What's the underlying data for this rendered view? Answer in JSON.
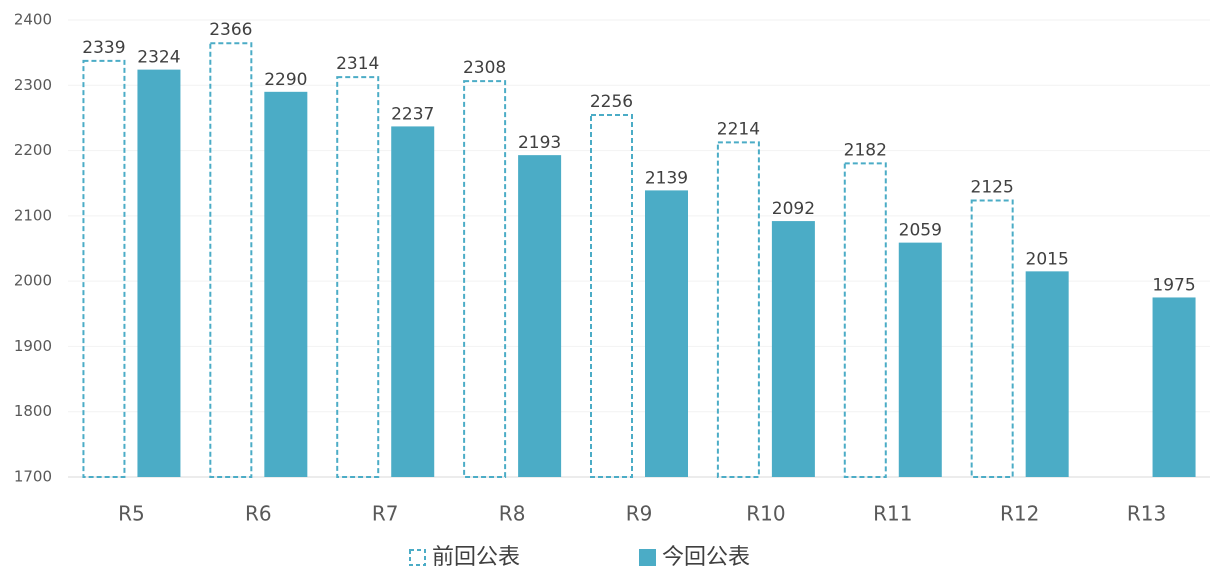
{
  "chart_data": {
    "type": "bar",
    "categories": [
      "R5",
      "R6",
      "R7",
      "R8",
      "R9",
      "R10",
      "R11",
      "R12",
      "R13"
    ],
    "series": [
      {
        "name": "前回公表",
        "color": "#4bacc6",
        "dashed": true,
        "values": [
          2339,
          2366,
          2314,
          2308,
          2256,
          2214,
          2182,
          2125,
          null
        ]
      },
      {
        "name": "今回公表",
        "color": "#4bacc6",
        "dashed": false,
        "values": [
          2324,
          2290,
          2237,
          2193,
          2139,
          2092,
          2059,
          2015,
          1975
        ]
      }
    ],
    "ylim": [
      1700,
      2400
    ],
    "yticks": [
      1700,
      1800,
      1900,
      2000,
      2100,
      2200,
      2300,
      2400
    ],
    "grid": true,
    "legend": "bottom"
  }
}
